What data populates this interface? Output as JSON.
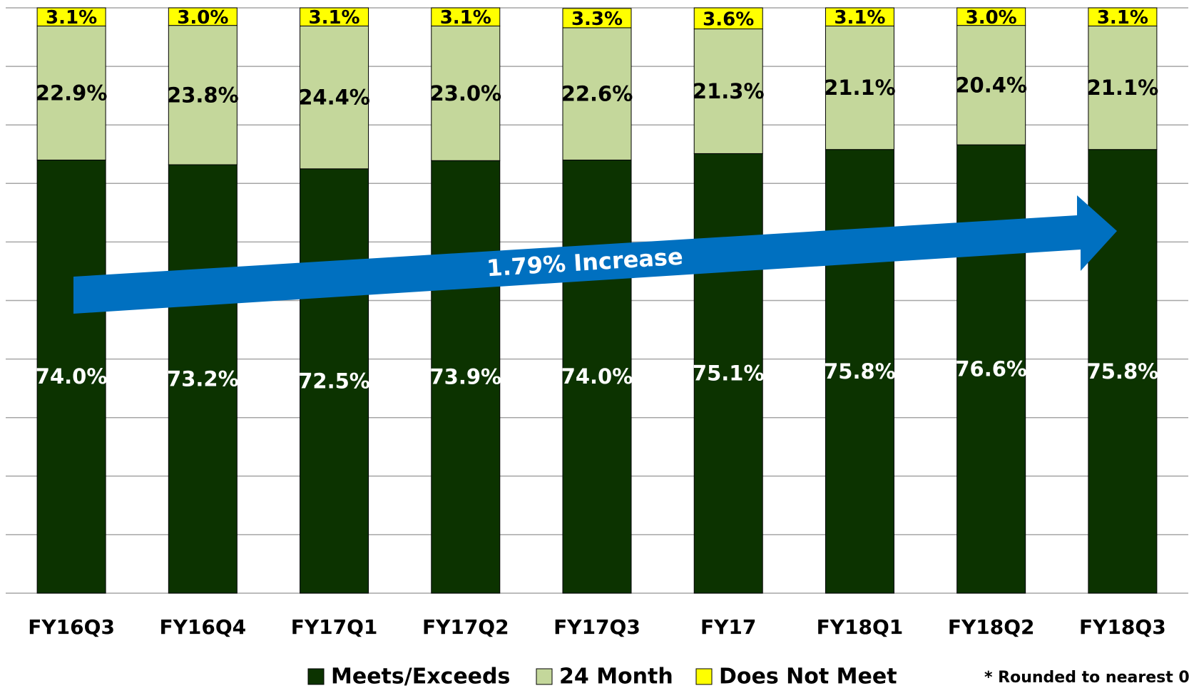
{
  "chart_data": {
    "type": "stacked_bar",
    "categories": [
      "FY16Q3",
      "FY16Q4",
      "FY17Q1",
      "FY17Q2",
      "FY17Q3",
      "FY17",
      "FY18Q1",
      "FY18Q2",
      "FY18Q3"
    ],
    "series": [
      {
        "name": "Meets/Exceeds",
        "color": "#0c3300",
        "label_color": "#ffffff",
        "values": [
          74.0,
          73.2,
          72.5,
          73.9,
          74.0,
          75.1,
          75.8,
          76.6,
          75.8
        ],
        "value_labels": [
          "74.0%",
          "73.2%",
          "72.5%",
          "73.9%",
          "74.0%",
          "75.1%",
          "75.8%",
          "76.6%",
          "75.8%"
        ]
      },
      {
        "name": "24 Month",
        "color": "#c4d79b",
        "label_color": "#000000",
        "values": [
          22.9,
          23.8,
          24.4,
          23.0,
          22.6,
          21.3,
          21.1,
          20.4,
          21.1
        ],
        "value_labels": [
          "22.9%",
          "23.8%",
          "24.4%",
          "23.0%",
          "22.6%",
          "21.3%",
          "21.1%",
          "20.4%",
          "21.1%"
        ]
      },
      {
        "name": "Does Not Meet",
        "color": "#ffff00",
        "label_color": "#000000",
        "values": [
          3.1,
          3.0,
          3.1,
          3.1,
          3.3,
          3.6,
          3.1,
          3.0,
          3.1
        ],
        "value_labels": [
          "3.1%",
          "3.0%",
          "3.1%",
          "3.1%",
          "3.3%",
          "3.6%",
          "3.1%",
          "3.0%",
          "3.1%"
        ]
      }
    ],
    "ylim": [
      0,
      100
    ],
    "yticks": [
      0,
      10,
      20,
      30,
      40,
      50,
      60,
      70,
      80,
      90,
      100
    ],
    "grid": true,
    "annotation": "1.79% Increase",
    "footnote": "* Rounded to nearest  0."
  }
}
